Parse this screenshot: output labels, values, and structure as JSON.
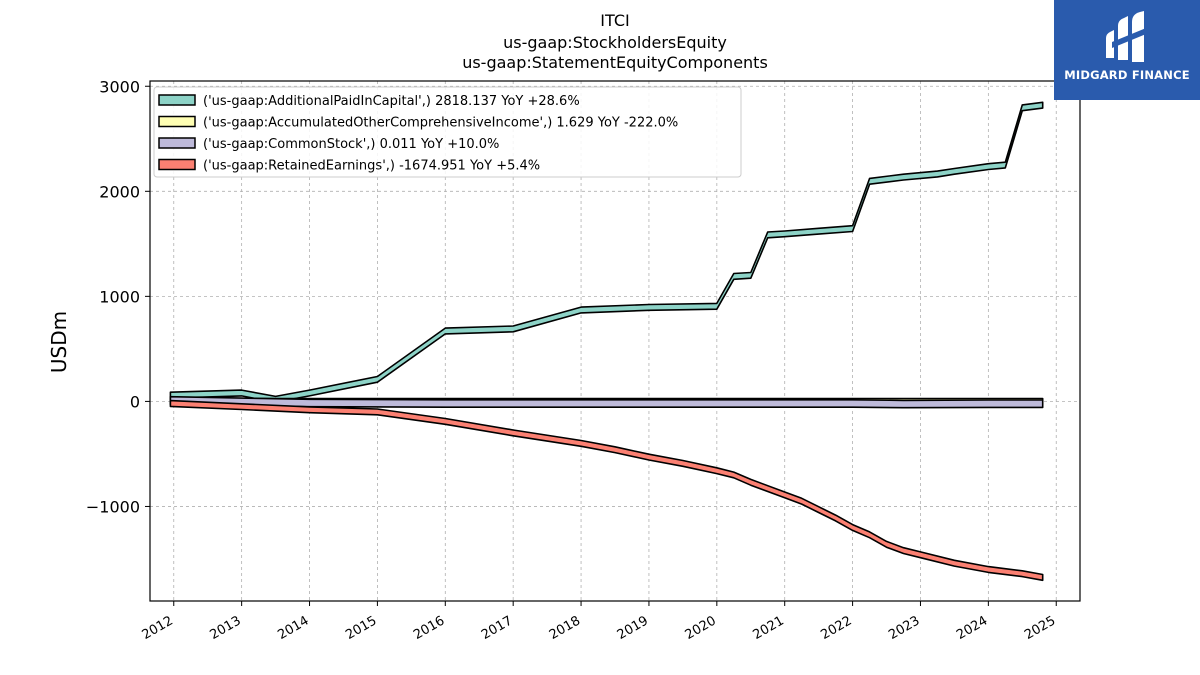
{
  "chart_data": {
    "type": "line",
    "title_lines": [
      "ITCI",
      "us-gaap:StockholdersEquity",
      "us-gaap:StatementEquityComponents"
    ],
    "ylabel": "USDm",
    "xlabel": "",
    "xlim": [
      2011.65,
      2025.35
    ],
    "ylim": [
      -1900,
      3050
    ],
    "yticks": [
      {
        "value": 3000,
        "label": "3000"
      },
      {
        "value": 2000,
        "label": "2000"
      },
      {
        "value": 1000,
        "label": "1000"
      },
      {
        "value": 0,
        "label": "0"
      },
      {
        "value": -1000,
        "label": "−1000"
      }
    ],
    "xticks": [
      {
        "value": 2012,
        "label": "2012"
      },
      {
        "value": 2013,
        "label": "2013"
      },
      {
        "value": 2014,
        "label": "2014"
      },
      {
        "value": 2015,
        "label": "2015"
      },
      {
        "value": 2016,
        "label": "2016"
      },
      {
        "value": 2017,
        "label": "2017"
      },
      {
        "value": 2018,
        "label": "2018"
      },
      {
        "value": 2019,
        "label": "2019"
      },
      {
        "value": 2020,
        "label": "2020"
      },
      {
        "value": 2021,
        "label": "2021"
      },
      {
        "value": 2022,
        "label": "2022"
      },
      {
        "value": 2023,
        "label": "2023"
      },
      {
        "value": 2024,
        "label": "2024"
      },
      {
        "value": 2025,
        "label": "2025"
      }
    ],
    "grid": true,
    "legend_position": "upper-left",
    "series": [
      {
        "name": "('us-gaap:AdditionalPaidInCapital',) 2818.137 YoY +28.6%",
        "color": "#8dd3c7",
        "band": 55,
        "x": [
          2011.95,
          2013.0,
          2013.5,
          2014.0,
          2015.0,
          2016.0,
          2017.0,
          2018.0,
          2019.0,
          2020.0,
          2020.25,
          2020.5,
          2020.75,
          2021.0,
          2021.5,
          2022.0,
          2022.25,
          2022.75,
          2023.25,
          2023.5,
          2024.0,
          2024.25,
          2024.5,
          2024.8
        ],
        "y": [
          60,
          80,
          20,
          80,
          210,
          670,
          690,
          870,
          895,
          905,
          1190,
          1200,
          1585,
          1595,
          1620,
          1645,
          2095,
          2135,
          2165,
          2190,
          2235,
          2250,
          2795,
          2820
        ]
      },
      {
        "name": "('us-gaap:AccumulatedOtherComprehensiveIncome',) 1.629 YoY -222.0%",
        "color": "#ffffb3",
        "band": 55,
        "x": [
          2011.95,
          2024.8
        ],
        "y": [
          0,
          0
        ]
      },
      {
        "name": "('us-gaap:CommonStock',) 0.011 YoY +10.0%",
        "color": "#bebada",
        "band": 70,
        "x": [
          2011.95,
          2014.0,
          2016.0,
          2018.0,
          2020.0,
          2022.0,
          2022.75,
          2024.0,
          2024.8
        ],
        "y": [
          10,
          -15,
          -20,
          -20,
          -20,
          -20,
          -25,
          -22,
          -22
        ]
      },
      {
        "name": "('us-gaap:RetainedEarnings',) -1674.951 YoY +5.4%",
        "color": "#fb8072",
        "band": 55,
        "x": [
          2011.95,
          2013.0,
          2014.0,
          2015.0,
          2016.0,
          2017.0,
          2018.0,
          2018.5,
          2019.0,
          2019.5,
          2020.0,
          2020.25,
          2020.5,
          2021.0,
          2021.25,
          2021.5,
          2021.75,
          2022.0,
          2022.25,
          2022.5,
          2022.75,
          2023.0,
          2023.5,
          2024.0,
          2024.5,
          2024.8
        ],
        "y": [
          -20,
          -50,
          -80,
          -100,
          -190,
          -300,
          -400,
          -460,
          -530,
          -590,
          -660,
          -700,
          -770,
          -890,
          -950,
          -1030,
          -1110,
          -1200,
          -1270,
          -1360,
          -1420,
          -1460,
          -1540,
          -1600,
          -1640,
          -1675
        ]
      }
    ]
  },
  "logo": {
    "text": "MIDGARD FINANCE"
  }
}
